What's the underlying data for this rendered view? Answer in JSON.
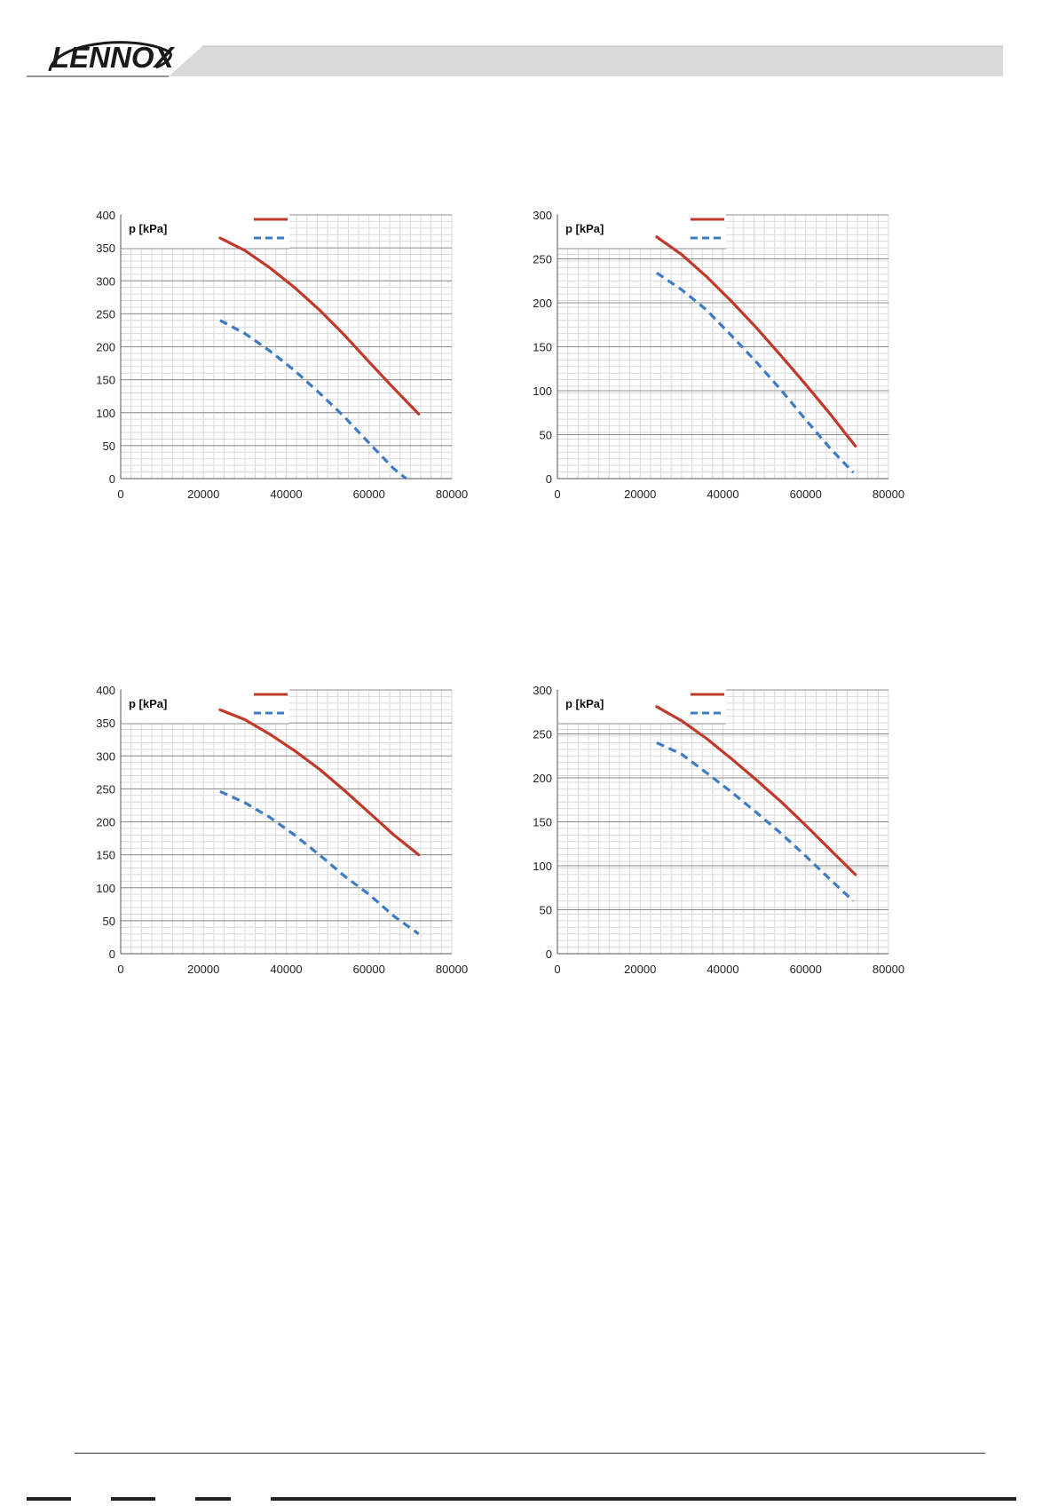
{
  "header": {
    "logo_text": "LENNOX",
    "logo_color": "#1a1a1a",
    "band_color": "#d9d9d9"
  },
  "colors": {
    "series_solid": "#c0392b",
    "series_dashed": "#3d7cc4",
    "grid_major": "#8c8c8c",
    "grid_minor": "#d9d9d9"
  },
  "chart_data": [
    {
      "type": "line",
      "ylabel": "p [kPa]",
      "xlim": [
        0,
        80000
      ],
      "ylim": [
        0,
        400
      ],
      "xticks": [
        "0",
        "20000",
        "40000",
        "60000",
        "80000"
      ],
      "yticks": [
        "0",
        "50",
        "100",
        "150",
        "200",
        "250",
        "300",
        "350",
        "400"
      ],
      "grid": true,
      "legend_placement": "top-center",
      "series": [
        {
          "style": "solid",
          "x": [
            24000,
            30000,
            36000,
            42000,
            48000,
            54000,
            60000,
            66000,
            72000
          ],
          "y": [
            365,
            346,
            320,
            290,
            256,
            218,
            177,
            137,
            98
          ]
        },
        {
          "style": "dashed",
          "x": [
            24000,
            30000,
            36000,
            42000,
            48000,
            54000,
            60000,
            66000,
            69000
          ],
          "y": [
            240,
            220,
            194,
            164,
            130,
            94,
            54,
            15,
            0
          ]
        }
      ]
    },
    {
      "type": "line",
      "ylabel": "p [kPa]",
      "xlim": [
        0,
        80000
      ],
      "ylim": [
        0,
        300
      ],
      "xticks": [
        "0",
        "20000",
        "40000",
        "60000",
        "80000"
      ],
      "yticks": [
        "0",
        "50",
        "100",
        "150",
        "200",
        "250",
        "300"
      ],
      "grid": true,
      "legend_placement": "top-center",
      "series": [
        {
          "style": "solid",
          "x": [
            24000,
            30000,
            36000,
            42000,
            48000,
            54000,
            60000,
            66000,
            72000
          ],
          "y": [
            275,
            255,
            230,
            202,
            172,
            140,
            107,
            73,
            37
          ]
        },
        {
          "style": "dashed",
          "x": [
            24000,
            30000,
            36000,
            42000,
            48000,
            54000,
            60000,
            66000,
            71500
          ],
          "y": [
            234,
            215,
            192,
            163,
            133,
            101,
            67,
            34,
            7
          ]
        }
      ]
    },
    {
      "type": "line",
      "ylabel": "p [kPa]",
      "xlim": [
        0,
        80000
      ],
      "ylim": [
        0,
        400
      ],
      "xticks": [
        "0",
        "20000",
        "40000",
        "60000",
        "80000"
      ],
      "yticks": [
        "0",
        "50",
        "100",
        "150",
        "200",
        "250",
        "300",
        "350",
        "400"
      ],
      "grid": true,
      "legend_placement": "top-center",
      "series": [
        {
          "style": "solid",
          "x": [
            24000,
            30000,
            36000,
            42000,
            48000,
            54000,
            60000,
            66000,
            72000
          ],
          "y": [
            370,
            355,
            333,
            308,
            280,
            248,
            214,
            180,
            150
          ]
        },
        {
          "style": "dashed",
          "x": [
            24000,
            30000,
            36000,
            42000,
            48000,
            54000,
            60000,
            66000,
            72000
          ],
          "y": [
            246,
            229,
            207,
            180,
            150,
            118,
            90,
            57,
            30
          ]
        }
      ]
    },
    {
      "type": "line",
      "ylabel": "p [kPa]",
      "xlim": [
        0,
        80000
      ],
      "ylim": [
        0,
        300
      ],
      "xticks": [
        "0",
        "20000",
        "40000",
        "60000",
        "80000"
      ],
      "yticks": [
        "0",
        "50",
        "100",
        "150",
        "200",
        "250",
        "300"
      ],
      "grid": true,
      "legend_placement": "top-center",
      "series": [
        {
          "style": "solid",
          "x": [
            24000,
            30000,
            36000,
            42000,
            48000,
            54000,
            60000,
            66000,
            72000
          ],
          "y": [
            281,
            265,
            245,
            222,
            198,
            173,
            146,
            118,
            90
          ]
        },
        {
          "style": "dashed",
          "x": [
            24000,
            30000,
            36000,
            42000,
            48000,
            54000,
            60000,
            66000,
            71500
          ],
          "y": [
            240,
            227,
            206,
            184,
            161,
            137,
            111,
            84,
            60
          ]
        }
      ]
    }
  ]
}
